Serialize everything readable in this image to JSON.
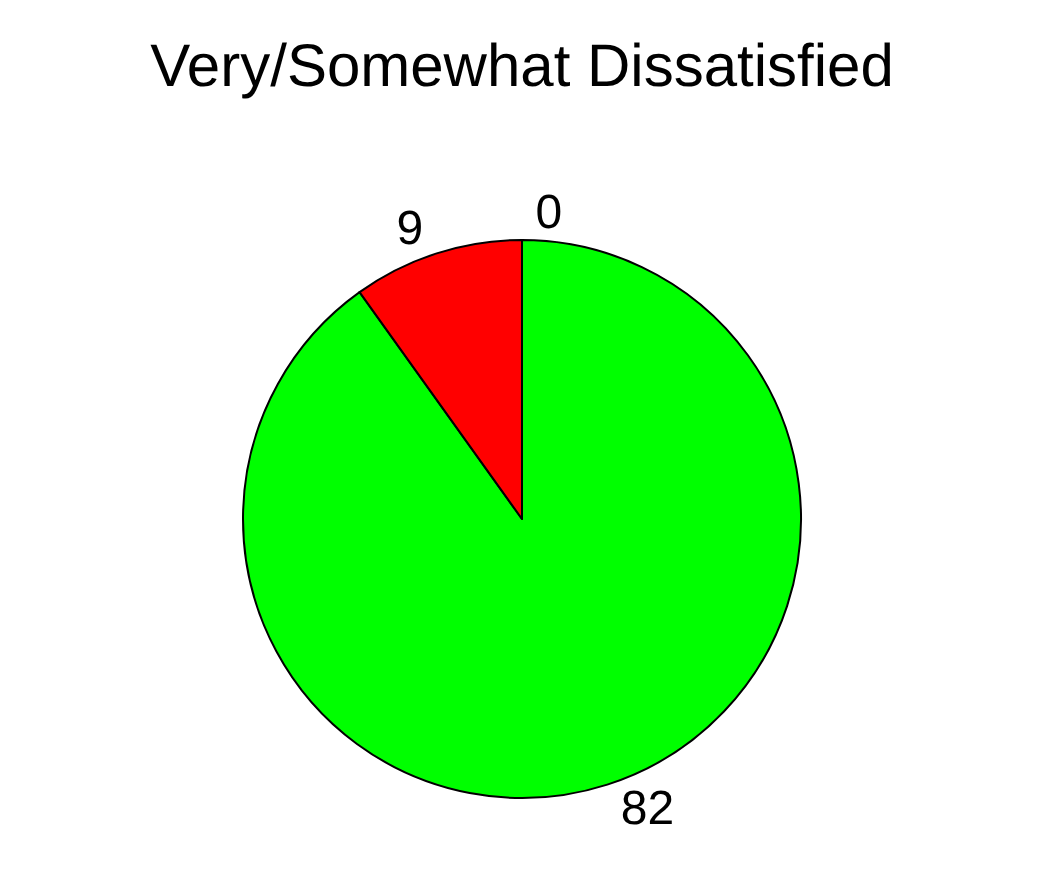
{
  "chart_data": {
    "type": "pie",
    "title": "Very/Somewhat Dissatisfied",
    "categories": [
      null,
      null,
      null
    ],
    "values": [
      0,
      82,
      9
    ],
    "colors": [
      "#ffff00",
      "#00ff00",
      "#ff0000"
    ],
    "value_labels": [
      "0",
      "82",
      "9"
    ],
    "legend": false
  }
}
